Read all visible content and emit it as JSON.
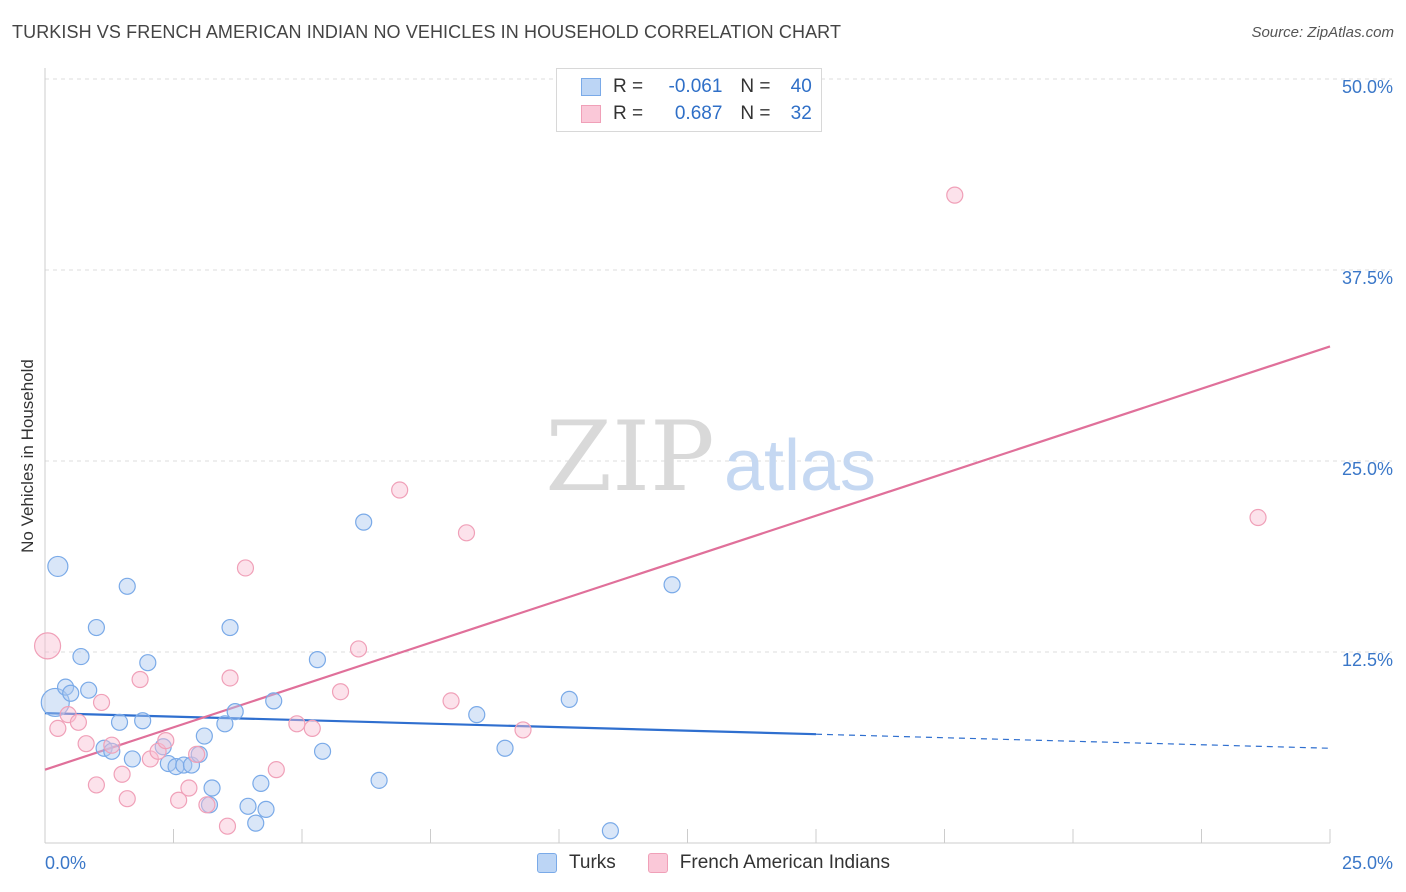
{
  "title": "TURKISH VS FRENCH AMERICAN INDIAN NO VEHICLES IN HOUSEHOLD CORRELATION CHART",
  "source": "Source: ZipAtlas.com",
  "watermark": {
    "zip": "ZIP",
    "atlas": "atlas"
  },
  "legend": {
    "rows": [
      {
        "r_label": "R =",
        "r_value": "-0.061",
        "n_label": "N =",
        "n_value": "40"
      },
      {
        "r_label": "R =",
        "r_value": "0.687",
        "n_label": "N =",
        "n_value": "32"
      }
    ]
  },
  "chart_data": {
    "type": "scatter",
    "title": "TURKISH VS FRENCH AMERICAN INDIAN NO VEHICLES IN HOUSEHOLD CORRELATION CHART",
    "xlabel": "",
    "ylabel": "No Vehicles in Household",
    "xlim": [
      0,
      25
    ],
    "ylim": [
      0,
      50
    ],
    "x_ticks": [
      "0.0%",
      "25.0%"
    ],
    "y_ticks": [
      {
        "value": 12.5,
        "label": "12.5%"
      },
      {
        "value": 25.0,
        "label": "25.0%"
      },
      {
        "value": 37.5,
        "label": "37.5%"
      },
      {
        "value": 50.0,
        "label": "50.0%"
      }
    ],
    "grid": true,
    "legend_position": "bottom",
    "colors": {
      "turks": "#7aaae8",
      "turks_line": "#2f6fcf",
      "french": "#f0a0b8",
      "french_line": "#e0709a"
    },
    "series": [
      {
        "name": "Turks",
        "r": -0.061,
        "n": 40,
        "trend": {
          "x0": 0,
          "y0": 8.5,
          "x1": 25,
          "y1": 6.2,
          "solid_until": 15
        },
        "points": [
          [
            0.2,
            9.2,
            14
          ],
          [
            0.25,
            18.1,
            10
          ],
          [
            0.4,
            10.2,
            8
          ],
          [
            0.5,
            9.8,
            8
          ],
          [
            0.7,
            12.2,
            8
          ],
          [
            0.85,
            10.0,
            8
          ],
          [
            1.0,
            14.1,
            8
          ],
          [
            1.15,
            6.2,
            8
          ],
          [
            1.3,
            6.0,
            8
          ],
          [
            1.45,
            7.9,
            8
          ],
          [
            1.6,
            16.8,
            8
          ],
          [
            1.7,
            5.5,
            8
          ],
          [
            1.9,
            8.0,
            8
          ],
          [
            2.0,
            11.8,
            8
          ],
          [
            2.3,
            6.3,
            8
          ],
          [
            2.4,
            5.2,
            8
          ],
          [
            2.55,
            5.0,
            8
          ],
          [
            2.7,
            5.1,
            8
          ],
          [
            2.85,
            5.1,
            8
          ],
          [
            3.0,
            5.8,
            8
          ],
          [
            3.1,
            7.0,
            8
          ],
          [
            3.2,
            2.5,
            8
          ],
          [
            3.25,
            3.6,
            8
          ],
          [
            3.5,
            7.8,
            8
          ],
          [
            3.6,
            14.1,
            8
          ],
          [
            3.7,
            8.6,
            8
          ],
          [
            3.95,
            2.4,
            8
          ],
          [
            4.1,
            1.3,
            8
          ],
          [
            4.2,
            3.9,
            8
          ],
          [
            4.3,
            2.2,
            8
          ],
          [
            4.45,
            9.3,
            8
          ],
          [
            5.3,
            12.0,
            8
          ],
          [
            5.4,
            6.0,
            8
          ],
          [
            6.2,
            21.0,
            8
          ],
          [
            6.5,
            4.1,
            8
          ],
          [
            8.4,
            8.4,
            8
          ],
          [
            8.95,
            6.2,
            8
          ],
          [
            10.2,
            9.4,
            8
          ],
          [
            11.0,
            0.8,
            8
          ],
          [
            12.2,
            16.9,
            8
          ]
        ]
      },
      {
        "name": "French American Indians",
        "r": 0.687,
        "n": 32,
        "trend": {
          "x0": 0,
          "y0": 4.8,
          "x1": 25,
          "y1": 32.5
        },
        "points": [
          [
            0.05,
            12.9,
            13
          ],
          [
            0.25,
            7.5,
            8
          ],
          [
            0.45,
            8.4,
            8
          ],
          [
            0.65,
            7.9,
            8
          ],
          [
            0.8,
            6.5,
            8
          ],
          [
            1.0,
            3.8,
            8
          ],
          [
            1.1,
            9.2,
            8
          ],
          [
            1.3,
            6.4,
            8
          ],
          [
            1.5,
            4.5,
            8
          ],
          [
            1.6,
            2.9,
            8
          ],
          [
            1.85,
            10.7,
            8
          ],
          [
            2.05,
            5.5,
            8
          ],
          [
            2.2,
            6.0,
            8
          ],
          [
            2.35,
            6.7,
            8
          ],
          [
            2.6,
            2.8,
            8
          ],
          [
            2.8,
            3.6,
            8
          ],
          [
            2.95,
            5.8,
            8
          ],
          [
            3.15,
            2.5,
            8
          ],
          [
            3.9,
            18.0,
            8
          ],
          [
            3.55,
            1.1,
            8
          ],
          [
            3.6,
            10.8,
            8
          ],
          [
            4.5,
            4.8,
            8
          ],
          [
            4.9,
            7.8,
            8
          ],
          [
            5.2,
            7.5,
            8
          ],
          [
            5.75,
            9.9,
            8
          ],
          [
            6.1,
            12.7,
            8
          ],
          [
            6.9,
            23.1,
            8
          ],
          [
            7.9,
            9.3,
            8
          ],
          [
            8.2,
            20.3,
            8
          ],
          [
            9.3,
            7.4,
            8
          ],
          [
            17.7,
            42.4,
            8
          ],
          [
            23.6,
            21.3,
            8
          ]
        ]
      }
    ]
  }
}
